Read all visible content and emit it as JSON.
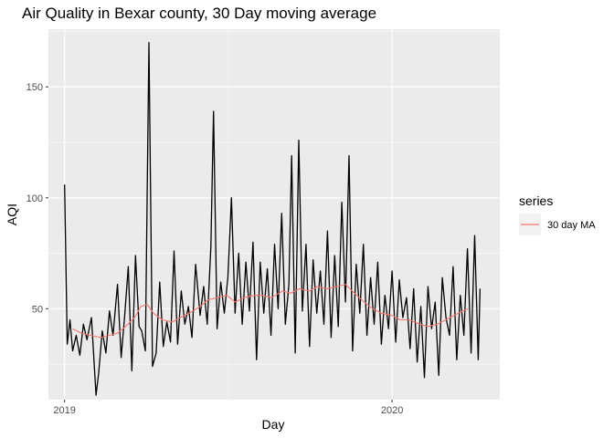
{
  "chart_data": {
    "type": "line",
    "title": "Air Quality in Bexar county, 30 Day moving average",
    "xlabel": "Day",
    "ylabel": "AQI",
    "x_range": [
      "2018-12-14",
      "2020-04-30"
    ],
    "ylim": [
      9,
      176
    ],
    "x_ticks": [
      {
        "date": "2019-01-01",
        "label": "2019"
      },
      {
        "date": "2020-01-01",
        "label": "2020"
      }
    ],
    "y_ticks": [
      {
        "value": 50,
        "label": "50"
      },
      {
        "value": 100,
        "label": "100"
      },
      {
        "value": 150,
        "label": "150"
      }
    ],
    "grid": true,
    "legend": {
      "title": "series",
      "placement": "right"
    },
    "series": [
      {
        "name": "",
        "color": "#000000",
        "x": [
          "2019-01-01",
          "2019-01-04",
          "2019-01-07",
          "2019-01-10",
          "2019-01-14",
          "2019-01-18",
          "2019-01-22",
          "2019-01-26",
          "2019-01-31",
          "2019-02-05",
          "2019-02-08",
          "2019-02-12",
          "2019-02-16",
          "2019-02-20",
          "2019-02-24",
          "2019-03-01",
          "2019-03-05",
          "2019-03-09",
          "2019-03-13",
          "2019-03-17",
          "2019-03-21",
          "2019-03-25",
          "2019-03-28",
          "2019-04-01",
          "2019-04-05",
          "2019-04-09",
          "2019-04-13",
          "2019-04-17",
          "2019-04-21",
          "2019-04-25",
          "2019-04-29",
          "2019-05-03",
          "2019-05-07",
          "2019-05-11",
          "2019-05-15",
          "2019-05-19",
          "2019-05-23",
          "2019-05-27",
          "2019-06-01",
          "2019-06-05",
          "2019-06-09",
          "2019-06-13",
          "2019-06-16",
          "2019-06-20",
          "2019-06-24",
          "2019-06-28",
          "2019-07-02",
          "2019-07-06",
          "2019-07-10",
          "2019-07-14",
          "2019-07-18",
          "2019-07-22",
          "2019-07-26",
          "2019-07-30",
          "2019-08-03",
          "2019-08-07",
          "2019-08-11",
          "2019-08-15",
          "2019-08-19",
          "2019-08-23",
          "2019-08-27",
          "2019-08-31",
          "2019-09-04",
          "2019-09-08",
          "2019-09-11",
          "2019-09-15",
          "2019-09-19",
          "2019-09-23",
          "2019-09-27",
          "2019-10-01",
          "2019-10-05",
          "2019-10-09",
          "2019-10-13",
          "2019-10-17",
          "2019-10-21",
          "2019-10-25",
          "2019-10-29",
          "2019-11-02",
          "2019-11-06",
          "2019-11-10",
          "2019-11-14",
          "2019-11-18",
          "2019-11-22",
          "2019-11-26",
          "2019-11-30",
          "2019-12-04",
          "2019-12-08",
          "2019-12-12",
          "2019-12-16",
          "2019-12-20",
          "2019-12-24",
          "2019-12-28",
          "2020-01-01",
          "2020-01-05",
          "2020-01-09",
          "2020-01-13",
          "2020-01-17",
          "2020-01-21",
          "2020-01-25",
          "2020-01-29",
          "2020-02-02",
          "2020-02-06",
          "2020-02-10",
          "2020-02-14",
          "2020-02-18",
          "2020-02-22",
          "2020-02-26",
          "2020-03-01",
          "2020-03-05",
          "2020-03-09",
          "2020-03-13",
          "2020-03-17",
          "2020-03-21",
          "2020-03-25",
          "2020-03-29",
          "2020-04-02",
          "2020-04-06",
          "2020-04-08"
        ],
        "y": [
          106,
          34,
          45,
          31,
          38,
          29,
          43,
          36,
          46,
          11,
          21,
          40,
          30,
          49,
          38,
          61,
          28,
          47,
          69,
          22,
          74,
          42,
          40,
          31,
          170,
          24,
          30,
          62,
          33,
          44,
          35,
          76,
          34,
          58,
          43,
          51,
          37,
          70,
          47,
          60,
          43,
          78,
          139,
          41,
          62,
          48,
          64,
          100,
          48,
          75,
          43,
          71,
          49,
          80,
          27,
          71,
          48,
          68,
          38,
          79,
          50,
          93,
          43,
          61,
          119,
          30,
          126,
          49,
          79,
          33,
          72,
          48,
          67,
          43,
          85,
          37,
          74,
          42,
          98,
          53,
          119,
          31,
          70,
          48,
          79,
          38,
          64,
          43,
          71,
          34,
          56,
          41,
          67,
          35,
          63,
          46,
          55,
          32,
          59,
          26,
          51,
          19,
          60,
          41,
          53,
          20,
          64,
          46,
          38,
          69,
          27,
          56,
          38,
          77,
          30,
          83,
          27,
          59
        ]
      },
      {
        "name": "30 day MA",
        "color": "#F8766D",
        "x": [
          "2019-01-10",
          "2019-01-20",
          "2019-01-30",
          "2019-02-10",
          "2019-02-20",
          "2019-03-01",
          "2019-03-10",
          "2019-03-20",
          "2019-03-27",
          "2019-04-03",
          "2019-04-10",
          "2019-04-20",
          "2019-05-01",
          "2019-05-10",
          "2019-05-20",
          "2019-06-01",
          "2019-06-10",
          "2019-06-20",
          "2019-07-01",
          "2019-07-10",
          "2019-07-20",
          "2019-08-01",
          "2019-08-10",
          "2019-08-20",
          "2019-09-01",
          "2019-09-10",
          "2019-09-20",
          "2019-10-01",
          "2019-10-10",
          "2019-10-20",
          "2019-11-01",
          "2019-11-10",
          "2019-11-20",
          "2019-12-01",
          "2019-12-10",
          "2019-12-20",
          "2020-01-01",
          "2020-01-10",
          "2020-01-20",
          "2020-02-01",
          "2020-02-10",
          "2020-02-20",
          "2020-03-01",
          "2020-03-10",
          "2020-03-20",
          "2020-03-26"
        ],
        "y": [
          41,
          39,
          38,
          37,
          38,
          39,
          42,
          46,
          51,
          52,
          48,
          45,
          44,
          46,
          48,
          51,
          54,
          55,
          56,
          53,
          55,
          56,
          56,
          55,
          58,
          57,
          59,
          58,
          60,
          59,
          60,
          61,
          57,
          53,
          50,
          48,
          47,
          45,
          45,
          43,
          42,
          43,
          45,
          47,
          49,
          50
        ]
      }
    ]
  }
}
